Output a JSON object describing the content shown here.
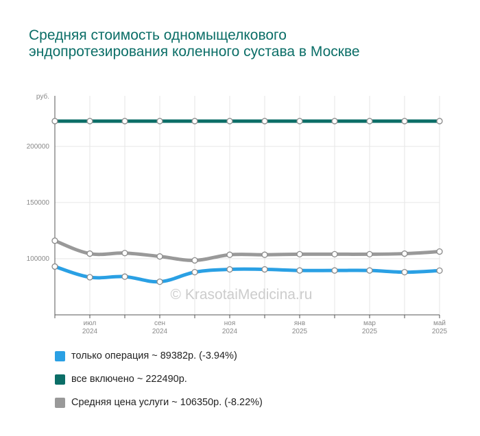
{
  "chart_data": {
    "type": "line",
    "title": "Средняя стоимость одномыщелкового эндопротезирования коленного сустава в Москве",
    "ylabel": "руб.",
    "watermark": "© KrasotaiMedicina.ru",
    "ylim": [
      50000,
      245000
    ],
    "yticks": [
      100000,
      150000,
      200000
    ],
    "ytick_labels": [
      "100000",
      "150000",
      "200000"
    ],
    "x": [
      "2024-06",
      "2024-07",
      "2024-08",
      "2024-09",
      "2024-10",
      "2024-11",
      "2024-12",
      "2025-01",
      "2025-02",
      "2025-03",
      "2025-04",
      "2025-05"
    ],
    "xtick_labels": [
      {
        "index": 1,
        "month": "июл",
        "year": "2024"
      },
      {
        "index": 3,
        "month": "сен",
        "year": "2024"
      },
      {
        "index": 5,
        "month": "ноя",
        "year": "2024"
      },
      {
        "index": 7,
        "month": "янв",
        "year": "2025"
      },
      {
        "index": 9,
        "month": "мар",
        "year": "2025"
      },
      {
        "index": 11,
        "month": "май",
        "year": "2025"
      }
    ],
    "grid": true,
    "legend_position": "bottom",
    "series": [
      {
        "name": "все включено",
        "color": "#0b6e67",
        "values": [
          222490,
          222490,
          222490,
          222490,
          222490,
          222490,
          222490,
          222490,
          222490,
          222490,
          222490,
          222490
        ]
      },
      {
        "name": "Средняя цена услуги",
        "color": "#999999",
        "values": [
          116000,
          104500,
          105000,
          102000,
          98500,
          103500,
          103500,
          104000,
          104000,
          104000,
          104500,
          106350
        ]
      },
      {
        "name": "только операция",
        "color": "#2aa0e4",
        "values": [
          93000,
          83500,
          84000,
          79500,
          88000,
          90500,
          90500,
          89500,
          89500,
          89500,
          88000,
          89382
        ]
      }
    ]
  },
  "legend": [
    {
      "label": "только операция ~ 89382р. (-3.94%)",
      "color": "#2aa0e4"
    },
    {
      "label": "все включено ~ 222490р.",
      "color": "#0b6e67"
    },
    {
      "label": "Средняя цена услуги ~ 106350р. (-8.22%)",
      "color": "#999999"
    }
  ]
}
